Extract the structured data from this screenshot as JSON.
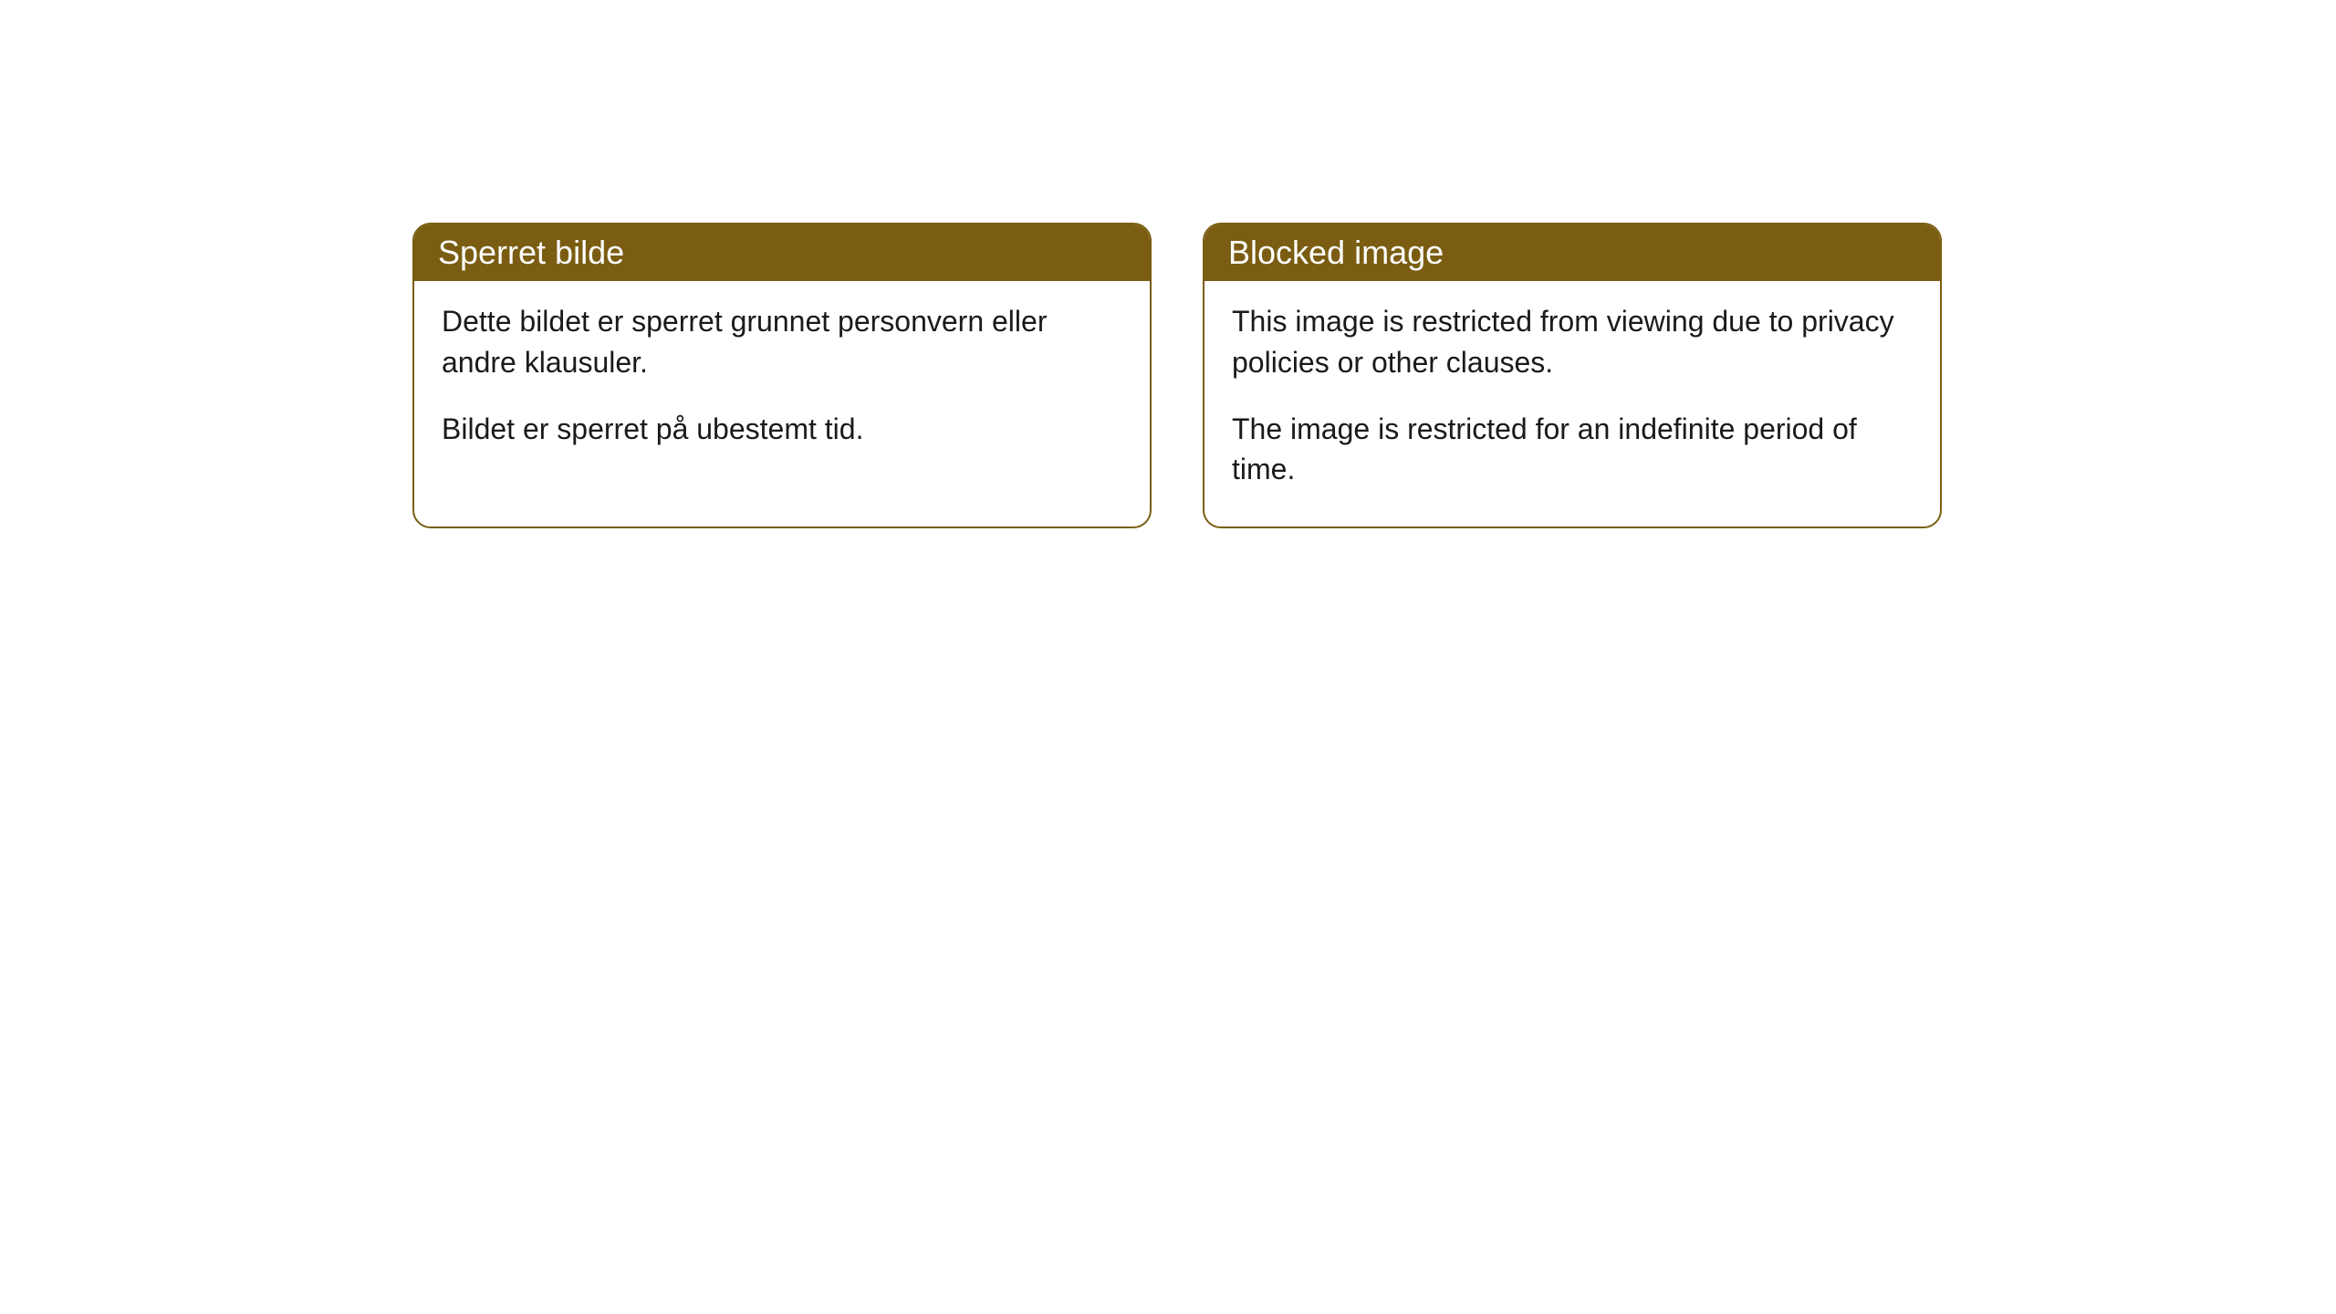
{
  "notices": {
    "left": {
      "title": "Sperret bilde",
      "para1": "Dette bildet er sperret grunnet personvern eller andre klausuler.",
      "para2": "Bildet er sperret på ubestemt tid."
    },
    "right": {
      "title": "Blocked image",
      "para1": "This image is restricted from viewing due to privacy policies or other clauses.",
      "para2": "The image is restricted for an indefinite period of time."
    }
  },
  "style": {
    "header_bg": "#7a5d12",
    "header_text_color": "#ffffff",
    "border_color": "#7a5d12",
    "body_bg": "#ffffff",
    "body_text_color": "#1a1a1a",
    "border_radius": 20,
    "title_fontsize": 36,
    "body_fontsize": 32
  }
}
